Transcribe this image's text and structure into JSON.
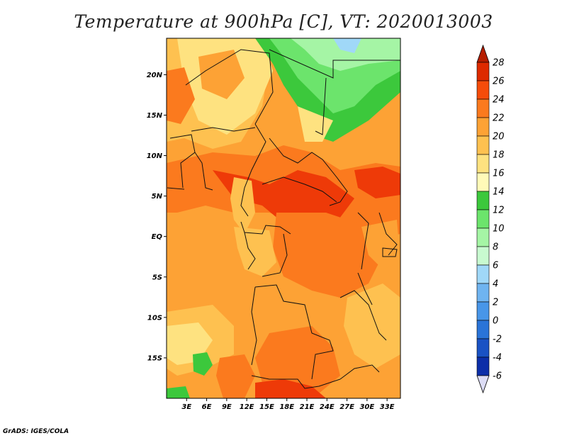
{
  "title": "Temperature at 900hPa [C], VT: 2020013003",
  "credit": "GrADS: IGES/COLA",
  "map": {
    "lon_range": [
      0,
      35
    ],
    "lat_range": [
      -20,
      24.5
    ],
    "lat_ticks": [
      {
        "value": 20,
        "label": "20N"
      },
      {
        "value": 15,
        "label": "15N"
      },
      {
        "value": 10,
        "label": "10N"
      },
      {
        "value": 5,
        "label": "5N"
      },
      {
        "value": 0,
        "label": "EQ"
      },
      {
        "value": -5,
        "label": "5S"
      },
      {
        "value": -10,
        "label": "10S"
      },
      {
        "value": -15,
        "label": "15S"
      }
    ],
    "lon_ticks": [
      {
        "value": 3,
        "label": "3E"
      },
      {
        "value": 6,
        "label": "6E"
      },
      {
        "value": 9,
        "label": "9E"
      },
      {
        "value": 12,
        "label": "12E"
      },
      {
        "value": 15,
        "label": "15E"
      },
      {
        "value": 18,
        "label": "18E"
      },
      {
        "value": 21,
        "label": "21E"
      },
      {
        "value": 24,
        "label": "24E"
      },
      {
        "value": 27,
        "label": "27E"
      },
      {
        "value": 30,
        "label": "30E"
      },
      {
        "value": 33,
        "label": "33E"
      }
    ]
  },
  "colorbar": {
    "levels": [
      "28",
      "26",
      "24",
      "22",
      "20",
      "18",
      "16",
      "14",
      "12",
      "10",
      "8",
      "6",
      "4",
      "2",
      "0",
      "-2",
      "-4",
      "-6"
    ],
    "colors_top_to_bottom": [
      "#dd2a00",
      "#f54c0a",
      "#fb7a1e",
      "#fda235",
      "#fec150",
      "#fee280",
      "#fffab8",
      "#3cc83c",
      "#6ce46c",
      "#a5f5a5",
      "#c8fad0",
      "#a0d8f8",
      "#6fb4f0",
      "#4896e8",
      "#2a74d8",
      "#1a52c4",
      "#0c2ea8",
      "#060c78"
    ],
    "arrow_top_color": "#b51e00",
    "arrow_bottom_color": "#dcdcf5"
  },
  "field_colors": {
    "c26": "#ee3a08",
    "c24": "#fb7a1e",
    "c22": "#fda235",
    "c20": "#fec150",
    "c18": "#fee280",
    "c16": "#fffab8",
    "c14": "#3cc83c",
    "c12": "#6ce46c",
    "c10": "#a5f5a5",
    "c8": "#c8fad0",
    "c6": "#a0d8f8"
  }
}
